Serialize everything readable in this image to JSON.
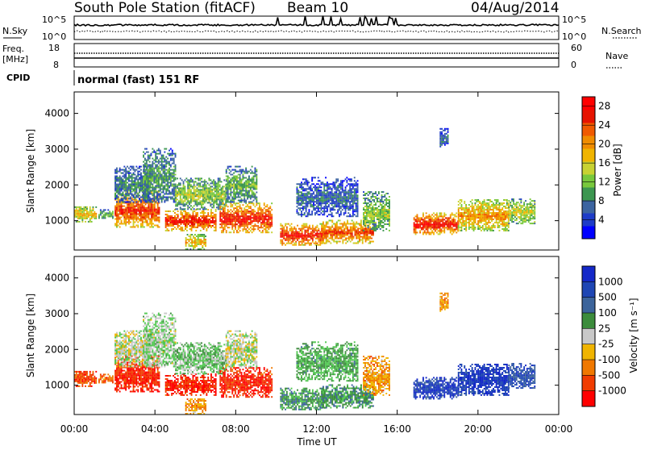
{
  "header": {
    "station": "South Pole Station (fitACF)",
    "beam": "Beam 10",
    "date": "04/Aug/2014"
  },
  "top_panels": {
    "nsky_label": "N.Sky",
    "nsky_ticks": [
      "10^5",
      "10^0"
    ],
    "nsearch_label": "N.Search",
    "nsearch_ticks": [
      "10^5",
      "10^0"
    ],
    "freq_label": "Freq.",
    "freq_unit": "[MHz]",
    "freq_ticks": [
      "18",
      "8"
    ],
    "nave_label": "Nave",
    "nave_ticks": [
      "60",
      "0"
    ],
    "cpid_label": "CPID",
    "cpid_text": "normal (fast) 151 RF"
  },
  "colors": {
    "power": [
      "#0000ff",
      "#1e3cc8",
      "#3c64a0",
      "#3c9650",
      "#78c83c",
      "#c8d232",
      "#f0b400",
      "#f08c00",
      "#f05a00",
      "#e61400",
      "#ff0000"
    ],
    "velocity": [
      "#ff0000",
      "#f03c00",
      "#f07800",
      "#f0b400",
      "#c8c8c8",
      "#50c850",
      "#3c8c3c",
      "#3c649b",
      "#1e46b4",
      "#1428c8"
    ],
    "power_bar": [
      "#0000ff",
      "#1e3cc8",
      "#3c64a0",
      "#3c9650",
      "#78c83c",
      "#c8d232",
      "#f0b400",
      "#f08c00",
      "#f05a00",
      "#e61400",
      "#ff0000"
    ]
  },
  "chart_data": [
    {
      "type": "heatmap",
      "name": "power",
      "ylabel": "Slant Range [km]",
      "xlim": [
        0,
        24
      ],
      "ylim": [
        180,
        4600
      ],
      "y_ticks": [
        "1000",
        "2000",
        "3000",
        "4000"
      ],
      "colorbar_label": "Power [dB]",
      "colorbar_ticks": [
        "4",
        "8",
        "12",
        "16",
        "20",
        "24",
        "28"
      ],
      "colorbar_range": [
        0,
        30
      ]
    },
    {
      "type": "heatmap",
      "name": "velocity",
      "ylabel": "Slant Range [km]",
      "xlim": [
        0,
        24
      ],
      "ylim": [
        180,
        4600
      ],
      "y_ticks": [
        "1000",
        "2000",
        "3000",
        "4000"
      ],
      "colorbar_label": "Velocity [m s⁻¹]",
      "colorbar_ticks": [
        "1000",
        "500",
        "100",
        "25",
        "-25",
        "-100",
        "-500",
        "-1000"
      ]
    }
  ],
  "time_axis": {
    "ticks": [
      "00:00",
      "04:00",
      "08:00",
      "12:00",
      "16:00",
      "20:00",
      "00:00"
    ],
    "label": "Time UT"
  }
}
